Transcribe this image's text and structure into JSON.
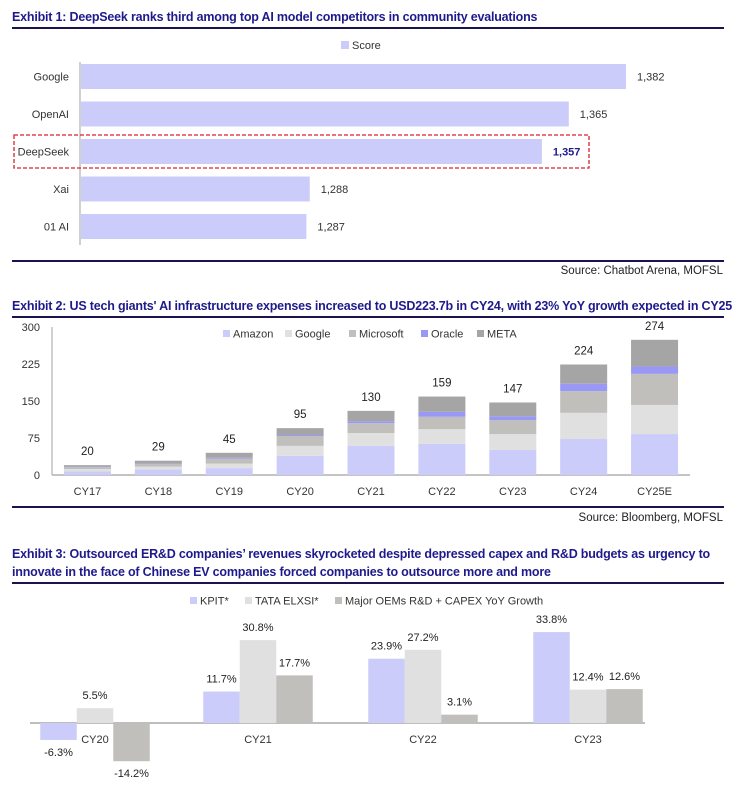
{
  "exhibits": {
    "ex1": {
      "title": "Exhibit 1: DeepSeek ranks third among top AI model competitors in community evaluations",
      "source": "Source: Chatbot Arena, MOFSL"
    },
    "ex2": {
      "title": "Exhibit 2: US tech giants' AI infrastructure expenses increased to USD223.7b in CY24, with 23% YoY growth expected in CY25",
      "source": "Source: Bloomberg, MOFSL"
    },
    "ex3": {
      "title_line1": "Exhibit 3: Outsourced ER&D companies’ revenues skyrocketed despite depressed capex and R&D budgets as urgency to",
      "title_line2": "innovate in the face of Chinese EV companies forced companies to outsource more and more"
    }
  },
  "colors": {
    "title": "#1f1a8c",
    "bar_primary": "#ccccfa",
    "amazon": "#ccccfa",
    "google": "#e0e0e0",
    "microsoft": "#c0bfbc",
    "oracle": "#9999f5",
    "meta": "#a6a5a5",
    "highlight_box": "#d9232e",
    "highlight_label": "#1f1a8c"
  },
  "chart_data": [
    {
      "type": "bar",
      "orientation": "horizontal",
      "title": "Exhibit 1: DeepSeek ranks third among top AI model competitors in community evaluations",
      "legend": [
        "Score"
      ],
      "legend_position": "top-center",
      "categories": [
        "Google",
        "OpenAI",
        "DeepSeek",
        "Xai",
        "01 AI"
      ],
      "values": [
        1382,
        1365,
        1357,
        1288,
        1287
      ],
      "labels": [
        "1,382",
        "1,365",
        "1,357",
        "1,288",
        "1,287"
      ],
      "highlight": "DeepSeek",
      "xlim": [
        1220,
        1382
      ],
      "grid": false
    },
    {
      "type": "bar",
      "stacked": true,
      "title": "Exhibit 2: US tech giants' AI infrastructure expenses increased to USD223.7b in CY24, with 23% YoY growth expected in CY25",
      "categories": [
        "CY17",
        "CY18",
        "CY19",
        "CY20",
        "CY21",
        "CY22",
        "CY23",
        "CY24",
        "CY25E"
      ],
      "series": [
        {
          "name": "Amazon",
          "values": [
            7,
            11,
            14,
            39,
            59,
            63,
            51,
            73,
            83
          ]
        },
        {
          "name": "Google",
          "values": [
            5,
            6,
            9,
            20,
            26,
            30,
            32,
            53,
            59
          ]
        },
        {
          "name": "Microsoft",
          "values": [
            4,
            5,
            10,
            20,
            20,
            25,
            28,
            44,
            63
          ]
        },
        {
          "name": "Oracle",
          "values": [
            1,
            1,
            2,
            2,
            4,
            10,
            8,
            15,
            15
          ]
        },
        {
          "name": "META",
          "values": [
            3,
            6,
            10,
            14,
            21,
            31,
            28,
            39,
            54
          ]
        }
      ],
      "totals": [
        20,
        29,
        45,
        95,
        130,
        159,
        147,
        224,
        274
      ],
      "yticks": [
        0,
        75,
        150,
        225,
        300
      ],
      "ylim": [
        0,
        300
      ],
      "legend_position": "top-center",
      "grid": false
    },
    {
      "type": "bar",
      "title": "Exhibit 3: Outsourced ER&D companies’ revenues skyrocketed despite depressed capex and R&D budgets as urgency to innovate in the face of Chinese EV companies forced companies to outsource more and more",
      "categories": [
        "CY20",
        "CY21",
        "CY22",
        "CY23"
      ],
      "series": [
        {
          "name": "KPIT*",
          "values": [
            -6.3,
            11.7,
            23.9,
            33.8
          ],
          "labels": [
            "-6.3%",
            "11.7%",
            "23.9%",
            "33.8%"
          ]
        },
        {
          "name": "TATA ELXSI*",
          "values": [
            5.5,
            30.8,
            27.2,
            12.4
          ],
          "labels": [
            "5.5%",
            "30.8%",
            "27.2%",
            "12.4%"
          ]
        },
        {
          "name": "Major OEMs R&D + CAPEX YoY Growth",
          "values": [
            -14.2,
            17.7,
            3.1,
            12.6
          ],
          "labels": [
            "-14.2%",
            "17.7%",
            "3.1%",
            "12.6%"
          ]
        }
      ],
      "unit": "%",
      "legend_position": "top-center",
      "grid": false
    }
  ]
}
